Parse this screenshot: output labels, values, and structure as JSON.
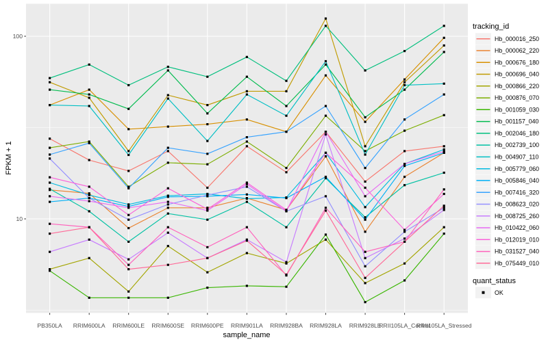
{
  "chart_data": {
    "type": "line",
    "title": "",
    "xlabel": "sample_name",
    "ylabel": "FPKM + 1",
    "y_scale": "log10",
    "y_ticks": [
      100,
      10
    ],
    "y_tick_labels": [
      "100",
      "10"
    ],
    "y_minor_ticks": [
      31.623,
      3.1623
    ],
    "grid": true,
    "legend_position": "right",
    "x_categories": [
      "PB350LA",
      "RRIM600LA",
      "RRIM600LE",
      "RRIM600SE",
      "RRIM600PE",
      "RRIM901LA",
      "RRIM928BA",
      "RRIM928LA",
      "RRIM928LE",
      "RRII105LA_Control",
      "RRII105LA_Stressed"
    ],
    "series": [
      {
        "name": "Hb_000016_250",
        "color": "#F8766D",
        "values": [
          27.5,
          21,
          18.3,
          23.5,
          14.8,
          25,
          18,
          30,
          16,
          23.5,
          25
        ]
      },
      {
        "name": "Hb_000062_220",
        "color": "#EA8331",
        "values": [
          14.4,
          13.8,
          8.9,
          11.5,
          11.5,
          13,
          11.2,
          22,
          8.5,
          17,
          23
        ]
      },
      {
        "name": "Hb_000676_180",
        "color": "#D89000",
        "values": [
          42,
          51,
          31,
          32,
          33,
          35,
          30,
          61,
          34,
          58,
          98
        ]
      },
      {
        "name": "Hb_000696_040",
        "color": "#C09B00",
        "values": [
          56,
          46,
          23.5,
          47.6,
          42,
          50,
          50,
          125,
          25,
          56,
          89
        ]
      },
      {
        "name": "Hb_000866_220",
        "color": "#A3A500",
        "values": [
          5.3,
          6.1,
          4.0,
          7.1,
          5.1,
          6.5,
          5.7,
          7.7,
          4.45,
          5.7,
          9.0
        ]
      },
      {
        "name": "Hb_000876_070",
        "color": "#7CAE00",
        "values": [
          24.5,
          26.5,
          15,
          20.3,
          19.9,
          26.5,
          19,
          36.7,
          23.5,
          30.4,
          37
        ]
      },
      {
        "name": "Hb_001059_030",
        "color": "#39B600",
        "values": [
          5.2,
          3.7,
          3.7,
          3.7,
          4.2,
          4.3,
          4.25,
          8.2,
          3.5,
          4.6,
          8.3
        ]
      },
      {
        "name": "Hb_001157_040",
        "color": "#00BB4E",
        "values": [
          51,
          48,
          40,
          65,
          37.8,
          60,
          41.5,
          70,
          36,
          51,
          82
        ]
      },
      {
        "name": "Hb_002046_180",
        "color": "#00BF7D",
        "values": [
          59,
          70,
          54,
          68,
          60,
          77,
          57,
          114,
          65,
          83,
          114
        ]
      },
      {
        "name": "Hb_002739_100",
        "color": "#00C1A3",
        "values": [
          14.6,
          11,
          7.5,
          10.7,
          9.9,
          12.4,
          9.0,
          16.7,
          10.2,
          15.3,
          17.9
        ]
      },
      {
        "name": "Hb_004907_110",
        "color": "#00BFC4",
        "values": [
          42,
          41.5,
          22.4,
          45.6,
          26.7,
          48,
          36.7,
          73,
          22.5,
          54,
          55
        ]
      },
      {
        "name": "Hb_005779_060",
        "color": "#00BAE0",
        "values": [
          15.8,
          13.5,
          12,
          13.4,
          13.7,
          12.9,
          13.1,
          23,
          11.6,
          20,
          24
        ]
      },
      {
        "name": "Hb_005846_040",
        "color": "#00B0F6",
        "values": [
          12.4,
          13,
          11.7,
          13.2,
          13.3,
          13.6,
          13,
          17,
          9.9,
          19.5,
          23
        ]
      },
      {
        "name": "Hb_007416_320",
        "color": "#35A2FF",
        "values": [
          22.5,
          26,
          14.7,
          24.5,
          22.7,
          28,
          30,
          41.5,
          19,
          35,
          48
        ]
      },
      {
        "name": "Hb_008623_020",
        "color": "#9590FF",
        "values": [
          21.4,
          13,
          9.9,
          12,
          13.5,
          15,
          11,
          13.3,
          5.5,
          8.5,
          11.5
        ]
      },
      {
        "name": "Hb_008725_260",
        "color": "#C77CFF",
        "values": [
          6.6,
          7.7,
          6.0,
          8.4,
          6.1,
          7.7,
          5.8,
          29,
          6.1,
          7.8,
          11.2
        ]
      },
      {
        "name": "Hb_010422_060",
        "color": "#E76BF3",
        "values": [
          13.3,
          12.5,
          11.5,
          12.4,
          11.1,
          15.5,
          11,
          30,
          13.3,
          20,
          23.4
        ]
      },
      {
        "name": "Hb_012019_010",
        "color": "#FA62DB",
        "values": [
          16.9,
          15,
          10.5,
          14.7,
          11.3,
          15.8,
          11.2,
          23,
          14.8,
          8.7,
          13.7
        ]
      },
      {
        "name": "Hb_031527_040",
        "color": "#FF62BC",
        "values": [
          9.4,
          9.0,
          5.6,
          9.0,
          7.0,
          9.0,
          4.9,
          11.5,
          6.6,
          7.5,
          14.5
        ]
      },
      {
        "name": "Hb_075449_010",
        "color": "#FF6A98",
        "values": [
          8.3,
          9.0,
          5.3,
          5.6,
          6.1,
          7.6,
          4.95,
          11.1,
          4.75,
          7.5,
          11.8
        ]
      }
    ],
    "legend": {
      "color_title": "tracking_id",
      "shape_title": "quant_status",
      "shape_entries": [
        {
          "label": "OK",
          "shape": "filled-square",
          "color": "#000000"
        }
      ]
    }
  },
  "colors": {
    "panel_bg": "#EBEBEB",
    "grid": "#FFFFFF",
    "tick_mark": "#333333",
    "tick_label": "#4D4D4D",
    "point": "#000000",
    "legend_key_bg": "#F2F2F2",
    "page_bg": "#FFFFFF"
  }
}
